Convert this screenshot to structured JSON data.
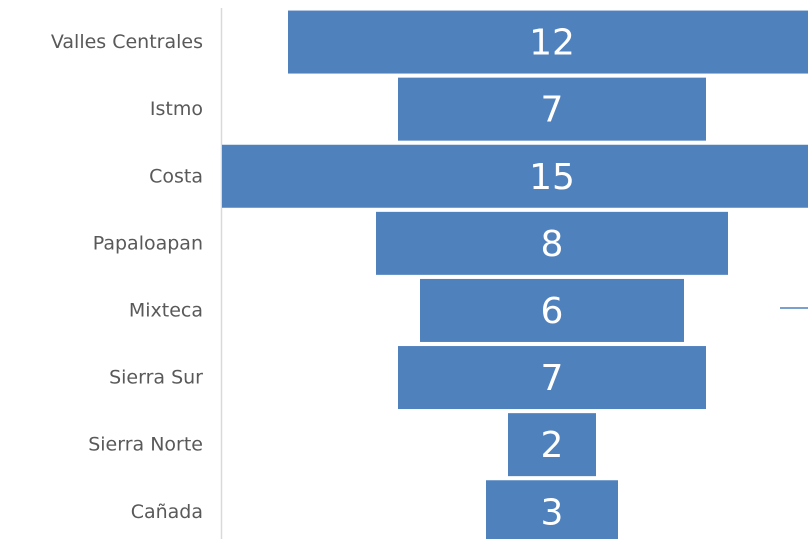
{
  "chart_data": {
    "type": "funnel",
    "categories": [
      "Valles Centrales",
      "Istmo",
      "Costa",
      "Papaloapan",
      "Mixteca",
      "Sierra Sur",
      "Sierra Norte",
      "Cañada"
    ],
    "values": [
      12,
      7,
      15,
      8,
      6,
      7,
      2,
      3
    ],
    "color": "#4f81bd"
  }
}
